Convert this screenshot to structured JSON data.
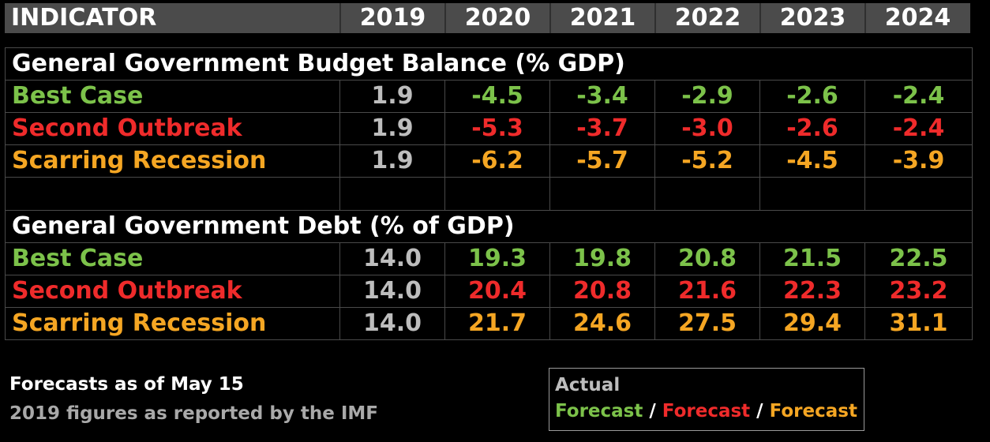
{
  "header": {
    "indicator": "INDICATOR",
    "years": [
      "2019",
      "2020",
      "2021",
      "2022",
      "2023",
      "2024"
    ]
  },
  "budget": {
    "title": "General Government Budget Balance (% GDP)",
    "rows": [
      {
        "label": "Best Case",
        "values": [
          "1.9",
          "-4.5",
          "-3.4",
          "-2.9",
          "-2.6",
          "-2.4"
        ]
      },
      {
        "label": "Second Outbreak",
        "values": [
          "1.9",
          "-5.3",
          "-3.7",
          "-3.0",
          "-2.6",
          "-2.4"
        ]
      },
      {
        "label": "Scarring Recession",
        "values": [
          "1.9",
          "-6.2",
          "-5.7",
          "-5.2",
          "-4.5",
          "-3.9"
        ]
      }
    ]
  },
  "debt": {
    "title": "General Government Debt (% of GDP)",
    "rows": [
      {
        "label": "Best Case",
        "values": [
          "14.0",
          "19.3",
          "19.8",
          "20.8",
          "21.5",
          "22.5"
        ]
      },
      {
        "label": "Second Outbreak",
        "values": [
          "14.0",
          "20.4",
          "20.8",
          "21.6",
          "22.3",
          "23.2"
        ]
      },
      {
        "label": "Scarring Recession",
        "values": [
          "14.0",
          "21.7",
          "24.6",
          "27.5",
          "29.4",
          "31.1"
        ]
      }
    ]
  },
  "colors": {
    "best_case": "#7cc24a",
    "second_outbreak": "#ef2b2b",
    "scarring_recession": "#f5a623",
    "actual": "#bdbdbd",
    "header_bg": "#4b4b4b"
  },
  "footnotes": {
    "line1": "Forecasts as of May 15",
    "line2": "2019 figures as reported by the IMF"
  },
  "legend": {
    "actual": "Actual",
    "forecast_green": "Forecast",
    "forecast_red": "Forecast",
    "forecast_orange": "Forecast",
    "separator": " / "
  }
}
